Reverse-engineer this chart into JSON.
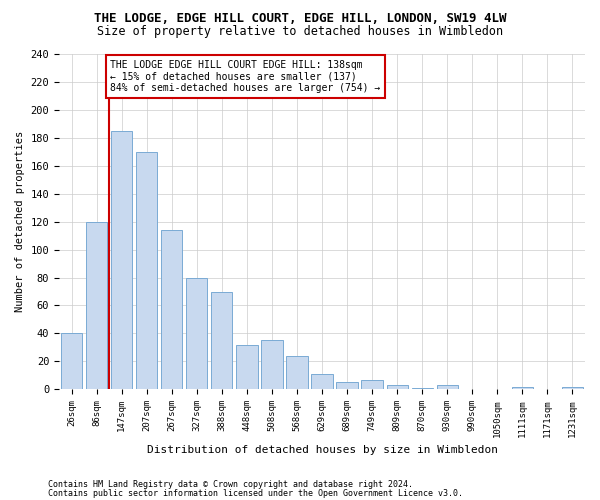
{
  "title": "THE LODGE, EDGE HILL COURT, EDGE HILL, LONDON, SW19 4LW",
  "subtitle": "Size of property relative to detached houses in Wimbledon",
  "xlabel": "Distribution of detached houses by size in Wimbledon",
  "ylabel": "Number of detached properties",
  "footnote1": "Contains HM Land Registry data © Crown copyright and database right 2024.",
  "footnote2": "Contains public sector information licensed under the Open Government Licence v3.0.",
  "bar_labels": [
    "26sqm",
    "86sqm",
    "147sqm",
    "207sqm",
    "267sqm",
    "327sqm",
    "388sqm",
    "448sqm",
    "508sqm",
    "568sqm",
    "629sqm",
    "689sqm",
    "749sqm",
    "809sqm",
    "870sqm",
    "930sqm",
    "990sqm",
    "1050sqm",
    "1111sqm",
    "1171sqm",
    "1231sqm"
  ],
  "bar_values": [
    40,
    120,
    185,
    170,
    114,
    80,
    70,
    32,
    35,
    24,
    11,
    5,
    7,
    3,
    1,
    3,
    0,
    0,
    2,
    0,
    2
  ],
  "bar_color": "#c8d9ef",
  "bar_edge_color": "#7aaad4",
  "highlight_line_color": "#cc0000",
  "highlight_line_index": 1.5,
  "annotation_text": "THE LODGE EDGE HILL COURT EDGE HILL: 138sqm\n← 15% of detached houses are smaller (137)\n84% of semi-detached houses are larger (754) →",
  "annotation_box_edgecolor": "#cc0000",
  "ylim": [
    0,
    240
  ],
  "yticks": [
    0,
    20,
    40,
    60,
    80,
    100,
    120,
    140,
    160,
    180,
    200,
    220,
    240
  ],
  "background_color": "#ffffff",
  "grid_color": "#cccccc"
}
